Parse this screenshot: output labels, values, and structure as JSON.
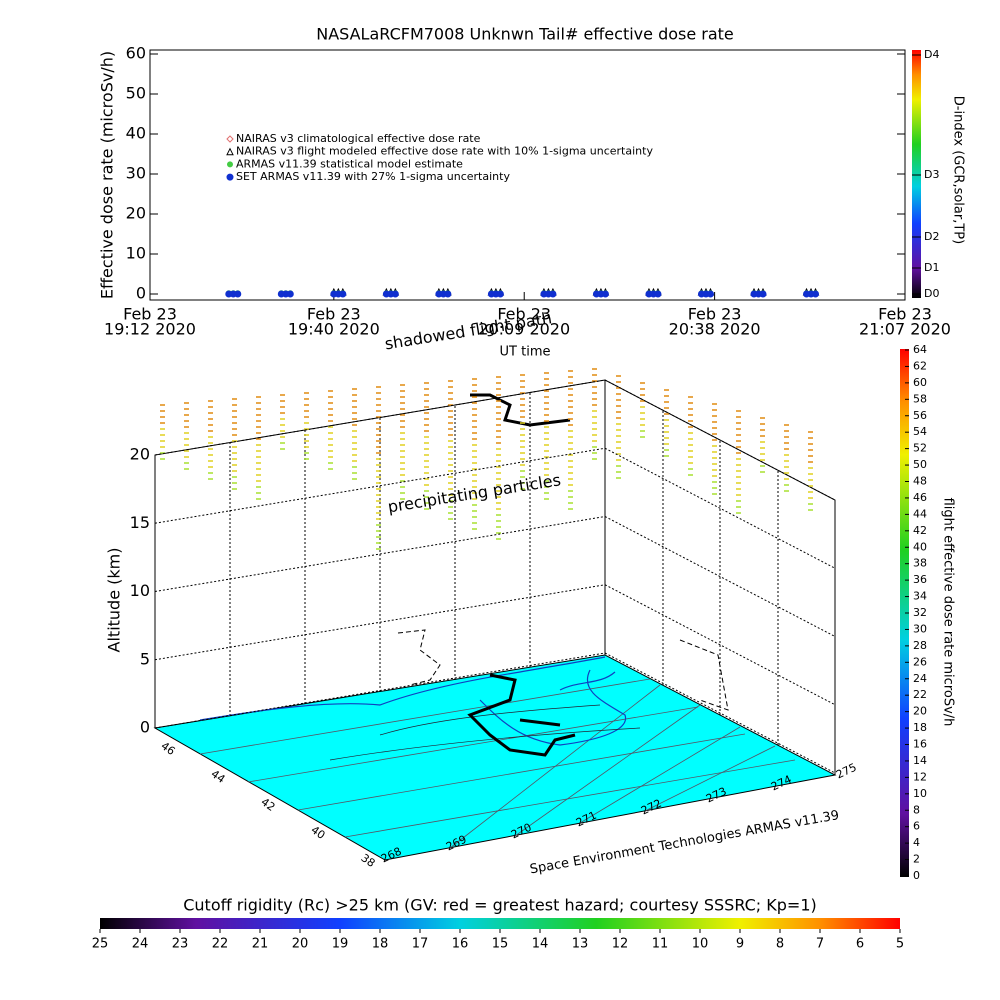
{
  "chart_data": [
    {
      "type": "scatter",
      "title": "NASALaRCFM7008  Unknwn Tail#  effective dose rate",
      "ylabel": "Effective dose rate (microSv/h)",
      "xlabel": "UT time",
      "ylim": [
        -1.5,
        61
      ],
      "yticks": [
        0,
        10,
        20,
        30,
        40,
        50,
        60
      ],
      "xlim": [
        "19:12",
        "21:07"
      ],
      "xticks": [
        {
          "value": "19:12",
          "label": [
            "Feb 23",
            "19:12 2020"
          ]
        },
        {
          "value": "19:40",
          "label": [
            "Feb 23",
            "19:40 2020"
          ]
        },
        {
          "value": "20:09",
          "label": [
            "Feb 23",
            "20:09 2020"
          ]
        },
        {
          "value": "20:38",
          "label": [
            "Feb 23",
            "20:38 2020"
          ]
        },
        {
          "value": "21:07",
          "label": [
            "Feb 23",
            "21:07 2020"
          ]
        }
      ],
      "series": [
        {
          "name": "NAIRAS v3 climatological effective dose rate",
          "color": "#e07070",
          "marker": "diamond",
          "x": [],
          "values": []
        },
        {
          "name": "NAIRAS v3 flight modeled effective dose rate with 10% 1-sigma uncertainty",
          "color": "#000000",
          "marker": "triangle",
          "x": [
            "19:40",
            "19:48",
            "19:56",
            "20:04",
            "20:12",
            "20:20",
            "20:28",
            "20:36",
            "20:44",
            "20:52"
          ],
          "values": [
            0.5,
            0.5,
            0.5,
            0.5,
            0.5,
            0.5,
            0.5,
            0.5,
            0.5,
            0.5
          ]
        },
        {
          "name": "ARMAS v11.39 statistical model estimate",
          "color": "#44cc44",
          "marker": "star",
          "x": [
            "19:24",
            "19:32",
            "19:40",
            "19:48",
            "19:56",
            "20:04",
            "20:12",
            "20:20",
            "20:28",
            "20:36",
            "20:44",
            "20:52"
          ],
          "values": [
            0.2,
            0.2,
            0.2,
            0.2,
            0.2,
            0.2,
            0.2,
            0.2,
            0.2,
            0.2,
            0.2,
            0.2
          ]
        },
        {
          "name": "SET ARMAS v11.39 with 27% 1-sigma uncertainty",
          "color": "#1030d0",
          "marker": "circle",
          "x": [
            "19:24",
            "19:32",
            "19:40",
            "19:48",
            "19:56",
            "20:04",
            "20:12",
            "20:20",
            "20:28",
            "20:36",
            "20:44",
            "20:52"
          ],
          "values": [
            0,
            0,
            0,
            0,
            0,
            0,
            0,
            0,
            0,
            0,
            0,
            0
          ]
        }
      ]
    },
    {
      "type": "colorbar",
      "label": "D-index (GCR,solar,TP)",
      "ticks": [
        "D0",
        "D1",
        "D2",
        "D3",
        "D4"
      ]
    },
    {
      "type": "colorbar",
      "label": "flight effective dose rate microSv/h",
      "ylim": [
        0,
        64
      ],
      "yticks": [
        0,
        2,
        4,
        6,
        8,
        10,
        12,
        14,
        16,
        18,
        20,
        22,
        24,
        26,
        28,
        30,
        32,
        34,
        36,
        38,
        40,
        42,
        44,
        46,
        48,
        50,
        52,
        54,
        56,
        58,
        60,
        62,
        64
      ]
    },
    {
      "type": "colorbar",
      "label": "Cutoff rigidity (Rc) >25 km (GV: red = greatest hazard; courtesy SSSRC; Kp=1)",
      "xlim": [
        25,
        5
      ],
      "xticks": [
        25,
        24,
        23,
        22,
        21,
        20,
        19,
        18,
        17,
        16,
        15,
        14,
        13,
        12,
        11,
        10,
        9,
        8,
        7,
        6,
        5
      ]
    },
    {
      "type": "surface3d",
      "zlabel": "Altitude (km)",
      "zlim": [
        0,
        20
      ],
      "zticks": [
        0,
        5,
        10,
        15,
        20
      ],
      "latticks": [
        46,
        44,
        42,
        40,
        38
      ],
      "lonticks": [
        268,
        269,
        270,
        271,
        272,
        273,
        274,
        275
      ],
      "annotations": [
        "shadowed flight path",
        "precipitating particles",
        "Space Environment Technologies ARMAS v11.39"
      ]
    }
  ]
}
